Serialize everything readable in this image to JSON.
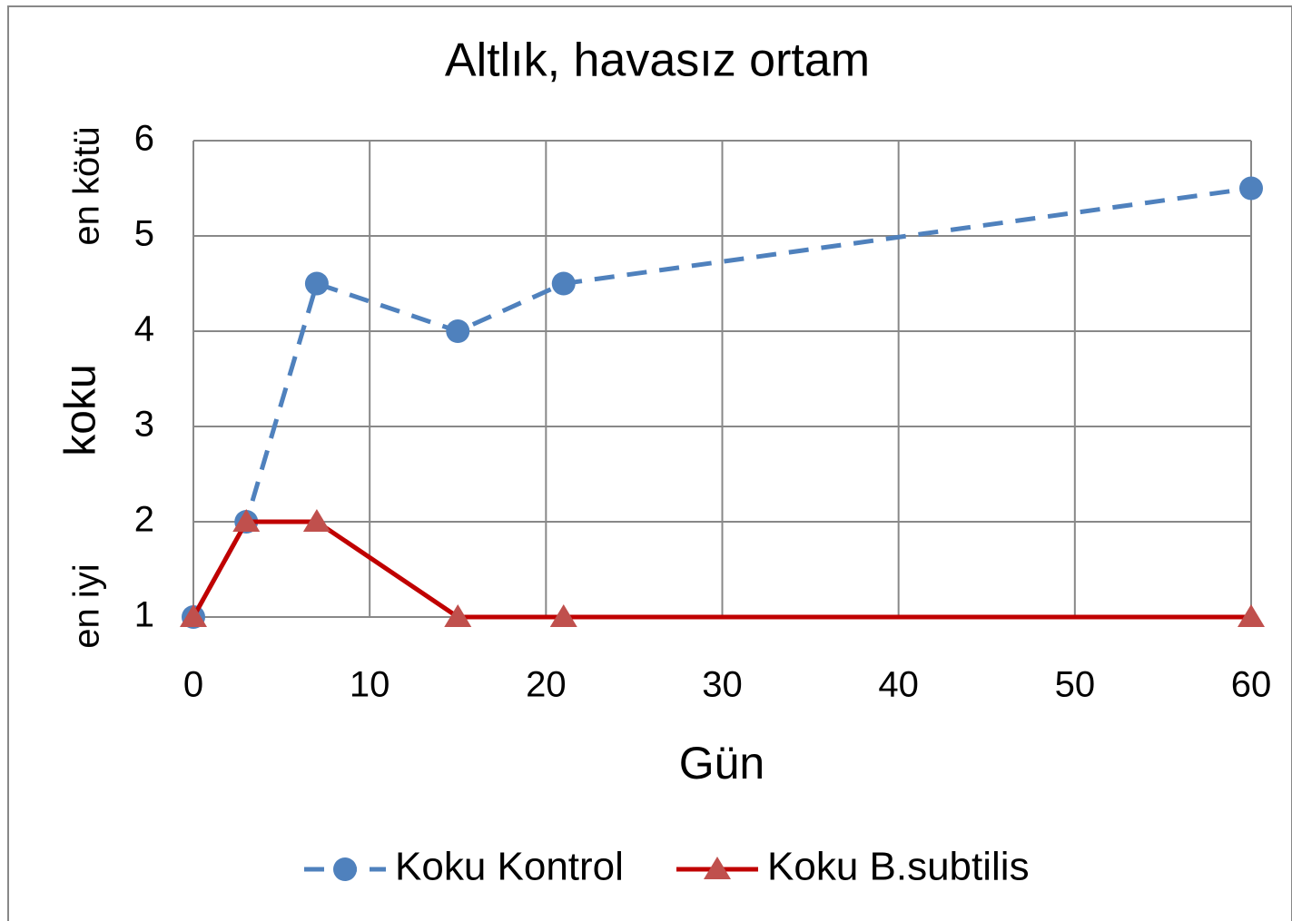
{
  "chart_data": {
    "type": "line",
    "title": "Altlık, havasız ortam",
    "x_label": "Gün",
    "y_label": "koku",
    "annotations": [
      "en kötü",
      "en iyi"
    ],
    "x": [
      0,
      3,
      7,
      15,
      21,
      60
    ],
    "series": [
      {
        "name": "Koku Kontrol",
        "color": "#4f81bd",
        "line_style": "dashed",
        "marker": "circle",
        "values": [
          1,
          2,
          4.5,
          4,
          4.5,
          5.5
        ]
      },
      {
        "name": "Koku B.subtilis",
        "color": "#c00000",
        "marker_color": "#c0504d",
        "line_style": "solid",
        "marker": "triangle",
        "values": [
          1,
          2,
          2,
          1,
          1,
          1
        ]
      }
    ],
    "xlim": [
      0,
      60
    ],
    "xticks": [
      0,
      10,
      20,
      30,
      40,
      50,
      60
    ],
    "ylim": [
      1,
      6
    ],
    "yticks": [
      1,
      2,
      3,
      4,
      5,
      6
    ],
    "grid": true,
    "legend": "bottom"
  }
}
